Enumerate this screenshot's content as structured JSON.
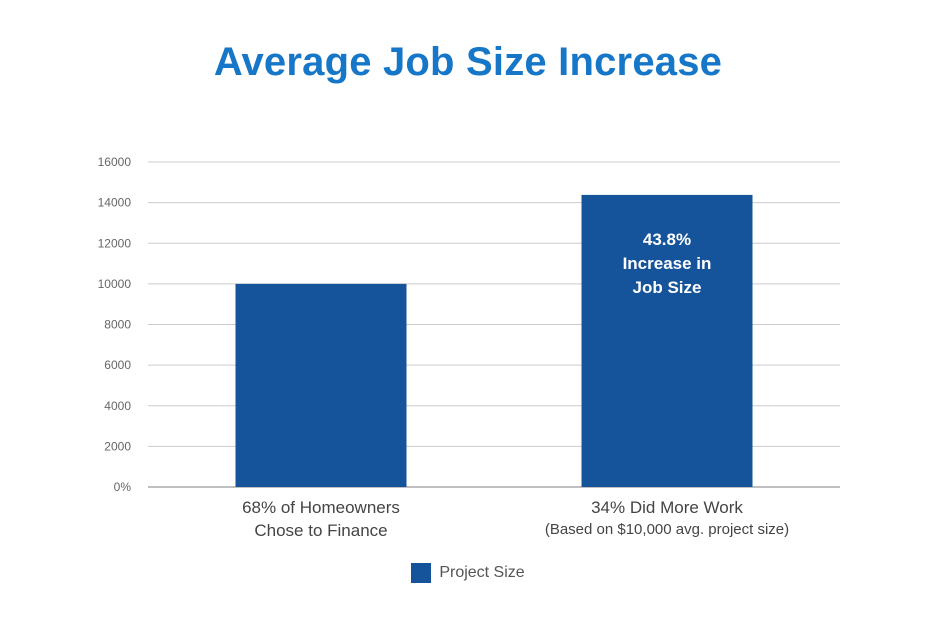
{
  "chart_data": {
    "type": "bar",
    "title": "Average Job Size Increase",
    "xlabel": "",
    "ylabel": "",
    "ylim": [
      0,
      16000
    ],
    "y_ticks": [
      "0%",
      "2000",
      "4000",
      "6000",
      "8000",
      "10000",
      "12000",
      "14000",
      "16000"
    ],
    "grid": true,
    "categories": [
      {
        "line1": "68% of Homeowners",
        "line2": "Chose to Finance"
      },
      {
        "line1": "34% Did More Work",
        "line2": "(Based on $10,000 avg. project size)"
      }
    ],
    "series": [
      {
        "name": "Project Size",
        "values": [
          10000,
          14380
        ],
        "color": "#15549a"
      }
    ],
    "annotations": [
      {
        "bar_index": 1,
        "lines": [
          "43.8%",
          "Increase in",
          "Job Size"
        ]
      }
    ],
    "legend_position": "bottom"
  },
  "colors": {
    "title": "#1676c8",
    "bar": "#15549a",
    "grid": "#cccccc",
    "axis": "#999999"
  }
}
